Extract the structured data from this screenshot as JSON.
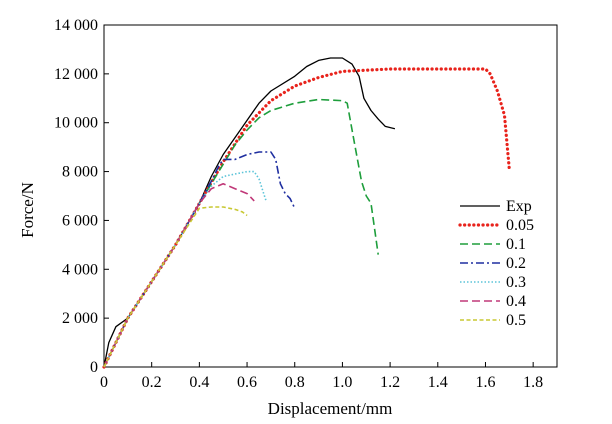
{
  "chart_data": {
    "type": "line",
    "title": "",
    "xlabel": "Displacement/mm",
    "ylabel": "Force/N",
    "xlim": [
      0,
      1.9
    ],
    "ylim": [
      0,
      14000
    ],
    "x_ticks": [
      0,
      0.2,
      0.4,
      0.6,
      0.8,
      1.0,
      1.2,
      1.4,
      1.6,
      1.8
    ],
    "x_tick_labels": [
      "0",
      "0.2",
      "0.4",
      "0.6",
      "0.8",
      "1.0",
      "1.2",
      "1.4",
      "1.6",
      "1.8"
    ],
    "y_ticks": [
      0,
      2000,
      4000,
      6000,
      8000,
      10000,
      12000,
      14000
    ],
    "y_tick_labels": [
      "0",
      "2 000",
      "4 000",
      "6 000",
      "8 000",
      "10 000",
      "12 000",
      "14 000"
    ],
    "grid": false,
    "legend_position": "right",
    "series": [
      {
        "name": "Exp",
        "color": "#000000",
        "style": "solid",
        "points": [
          [
            0,
            0
          ],
          [
            0.02,
            1000
          ],
          [
            0.05,
            1650
          ],
          [
            0.1,
            2000
          ],
          [
            0.2,
            3500
          ],
          [
            0.3,
            5000
          ],
          [
            0.4,
            6700
          ],
          [
            0.45,
            7800
          ],
          [
            0.5,
            8700
          ],
          [
            0.6,
            10100
          ],
          [
            0.65,
            10800
          ],
          [
            0.7,
            11300
          ],
          [
            0.8,
            11900
          ],
          [
            0.85,
            12300
          ],
          [
            0.9,
            12550
          ],
          [
            0.95,
            12650
          ],
          [
            1.0,
            12650
          ],
          [
            1.04,
            12400
          ],
          [
            1.07,
            11900
          ],
          [
            1.09,
            11000
          ],
          [
            1.12,
            10500
          ],
          [
            1.15,
            10150
          ],
          [
            1.18,
            9850
          ],
          [
            1.22,
            9750
          ]
        ]
      },
      {
        "name": "0.05",
        "color": "#e8231c",
        "style": "dotted",
        "points": [
          [
            0,
            0
          ],
          [
            0.1,
            2000
          ],
          [
            0.2,
            3500
          ],
          [
            0.3,
            5000
          ],
          [
            0.4,
            6700
          ],
          [
            0.5,
            8400
          ],
          [
            0.6,
            9900
          ],
          [
            0.7,
            10900
          ],
          [
            0.8,
            11500
          ],
          [
            0.9,
            11850
          ],
          [
            1.0,
            12100
          ],
          [
            1.1,
            12150
          ],
          [
            1.2,
            12200
          ],
          [
            1.3,
            12200
          ],
          [
            1.4,
            12200
          ],
          [
            1.5,
            12200
          ],
          [
            1.6,
            12200
          ],
          [
            1.62,
            12000
          ],
          [
            1.65,
            11300
          ],
          [
            1.68,
            10300
          ],
          [
            1.7,
            8100
          ]
        ]
      },
      {
        "name": "0.1",
        "color": "#1e9e3c",
        "style": "dashed",
        "points": [
          [
            0,
            0
          ],
          [
            0.1,
            2000
          ],
          [
            0.2,
            3500
          ],
          [
            0.3,
            5000
          ],
          [
            0.4,
            6700
          ],
          [
            0.5,
            8300
          ],
          [
            0.55,
            9100
          ],
          [
            0.6,
            9700
          ],
          [
            0.65,
            10200
          ],
          [
            0.7,
            10500
          ],
          [
            0.8,
            10800
          ],
          [
            0.9,
            10950
          ],
          [
            1.0,
            10900
          ],
          [
            1.02,
            10800
          ],
          [
            1.05,
            9200
          ],
          [
            1.08,
            7600
          ],
          [
            1.1,
            7000
          ],
          [
            1.12,
            6700
          ],
          [
            1.15,
            4600
          ]
        ]
      },
      {
        "name": "0.2",
        "color": "#1f2fa0",
        "style": "dashdot",
        "points": [
          [
            0,
            0
          ],
          [
            0.1,
            2000
          ],
          [
            0.2,
            3500
          ],
          [
            0.3,
            5000
          ],
          [
            0.4,
            6700
          ],
          [
            0.45,
            7600
          ],
          [
            0.48,
            8200
          ],
          [
            0.5,
            8500
          ],
          [
            0.55,
            8500
          ],
          [
            0.6,
            8700
          ],
          [
            0.65,
            8800
          ],
          [
            0.7,
            8800
          ],
          [
            0.72,
            8500
          ],
          [
            0.74,
            7500
          ],
          [
            0.76,
            7100
          ],
          [
            0.78,
            6900
          ],
          [
            0.8,
            6500
          ]
        ]
      },
      {
        "name": "0.3",
        "color": "#5bc4d8",
        "style": "dotted",
        "points": [
          [
            0,
            0
          ],
          [
            0.1,
            2000
          ],
          [
            0.2,
            3500
          ],
          [
            0.3,
            5000
          ],
          [
            0.4,
            6700
          ],
          [
            0.45,
            7400
          ],
          [
            0.5,
            7800
          ],
          [
            0.55,
            7900
          ],
          [
            0.6,
            8000
          ],
          [
            0.63,
            8000
          ],
          [
            0.65,
            7700
          ],
          [
            0.67,
            7100
          ],
          [
            0.68,
            6800
          ]
        ]
      },
      {
        "name": "0.4",
        "color": "#c03878",
        "style": "dashed",
        "points": [
          [
            0,
            0
          ],
          [
            0.1,
            2000
          ],
          [
            0.2,
            3500
          ],
          [
            0.3,
            5000
          ],
          [
            0.4,
            6700
          ],
          [
            0.45,
            7300
          ],
          [
            0.5,
            7500
          ],
          [
            0.55,
            7300
          ],
          [
            0.6,
            7100
          ],
          [
            0.63,
            6800
          ]
        ]
      },
      {
        "name": "0.5",
        "color": "#c8c832",
        "style": "dashed",
        "points": [
          [
            0,
            0
          ],
          [
            0.1,
            2000
          ],
          [
            0.2,
            3500
          ],
          [
            0.3,
            5000
          ],
          [
            0.4,
            6500
          ],
          [
            0.45,
            6550
          ],
          [
            0.5,
            6550
          ],
          [
            0.55,
            6450
          ],
          [
            0.58,
            6350
          ],
          [
            0.6,
            6200
          ]
        ]
      }
    ]
  }
}
